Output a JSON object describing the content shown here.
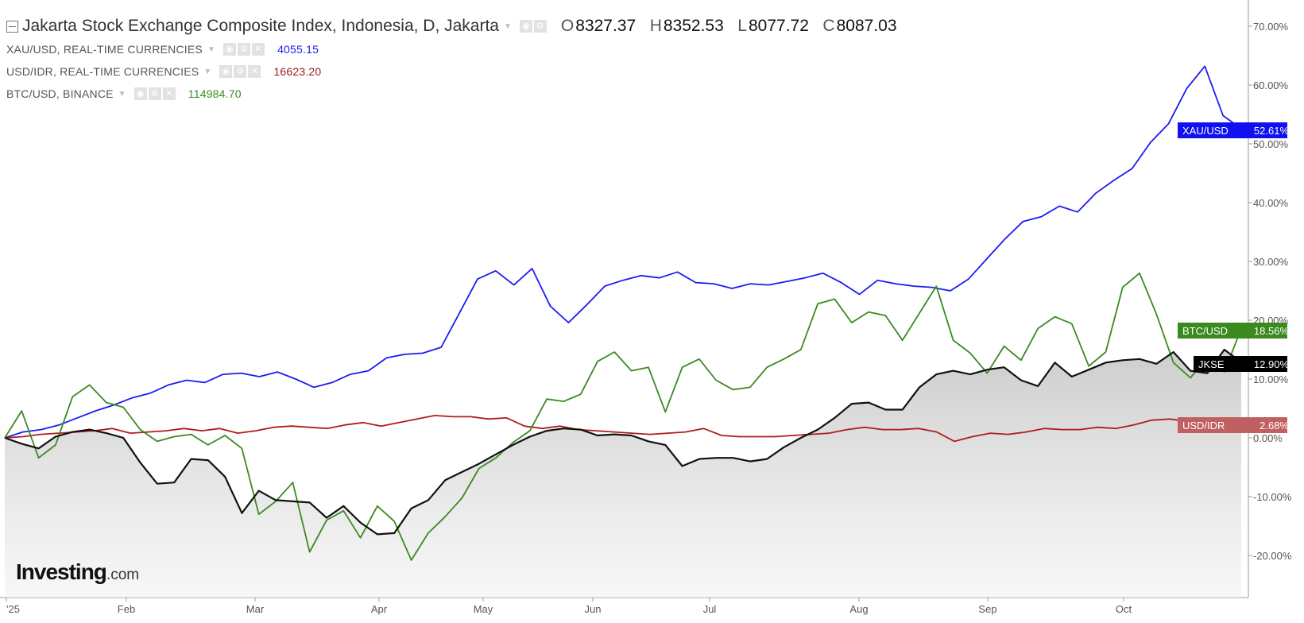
{
  "header": {
    "main_title": "Jakarta Stock Exchange Composite Index, Indonesia, D, Jakarta",
    "ohlc": {
      "o_label": "O",
      "o": "8327.37",
      "h_label": "H",
      "h": "8352.53",
      "l_label": "L",
      "l": "8077.72",
      "c_label": "C",
      "c": "8087.03"
    },
    "series_rows": [
      {
        "name": "XAU/USD, REAL-TIME CURRENCIES",
        "value": "4055.15"
      },
      {
        "name": "USD/IDR, REAL-TIME CURRENCIES",
        "value": "16623.20"
      },
      {
        "name": "BTC/USD, BINANCE",
        "value": "114984.70"
      }
    ]
  },
  "logo": {
    "main": "Investing",
    "suffix": ".com"
  },
  "icons": [
    "collapse-icon",
    "dropdown-caret-icon",
    "eye-icon",
    "settings-icon",
    "close-icon"
  ],
  "colors": {
    "xau": "#1c1cf0",
    "idr": "#b01c1c",
    "btc": "#3a8a20",
    "jkse": "#111111"
  },
  "chart_data": {
    "type": "line",
    "x_labels": [
      "'25",
      "Feb",
      "Mar",
      "Apr",
      "May",
      "Jun",
      "Jul",
      "Aug",
      "Sep",
      "Oct"
    ],
    "y_ticks": [
      "70.00%",
      "60.00%",
      "50.00%",
      "40.00%",
      "30.00%",
      "20.00%",
      "10.00%",
      "0.00%",
      "-10.00%",
      "-20.00%"
    ],
    "ylim": [
      -25,
      73
    ],
    "grid": false,
    "series": [
      {
        "name": "XAU/USD",
        "label": "XAU/USD",
        "last": "52.61%",
        "color": "#1c1cf0",
        "values": [
          0.0,
          1.0,
          1.4,
          2.2,
          3.4,
          4.6,
          5.6,
          6.8,
          7.6,
          9.0,
          9.8,
          9.4,
          10.8,
          11.0,
          10.4,
          11.2,
          10.0,
          8.6,
          9.4,
          10.8,
          11.4,
          13.6,
          14.2,
          14.4,
          15.4,
          21.2,
          27.0,
          28.4,
          26.0,
          28.8,
          22.4,
          19.6,
          22.6,
          25.8,
          26.8,
          27.6,
          27.2,
          28.2,
          26.4,
          26.2,
          25.4,
          26.2,
          26.0,
          26.6,
          27.2,
          28.0,
          26.4,
          24.4,
          26.8,
          26.2,
          25.8,
          25.6,
          25.0,
          27.0,
          30.4,
          33.8,
          36.8,
          37.6,
          39.4,
          38.4,
          41.6,
          43.8,
          45.8,
          50.2,
          53.4,
          59.4,
          63.2,
          54.8,
          52.6
        ]
      },
      {
        "name": "USD/IDR",
        "label": "USD/IDR",
        "last": "2.68%",
        "color": "#b01c1c",
        "values": [
          0.0,
          0.2,
          0.6,
          0.8,
          1.0,
          1.2,
          1.6,
          0.8,
          1.0,
          1.2,
          1.6,
          1.2,
          1.6,
          0.8,
          1.2,
          1.8,
          2.0,
          1.8,
          1.6,
          2.2,
          2.6,
          2.0,
          2.6,
          3.2,
          3.8,
          3.6,
          3.6,
          3.2,
          3.4,
          2.0,
          1.6,
          2.0,
          1.4,
          1.2,
          1.0,
          0.8,
          0.6,
          0.8,
          1.0,
          1.6,
          0.4,
          0.2,
          0.2,
          0.2,
          0.4,
          0.6,
          0.8,
          1.4,
          1.8,
          1.4,
          1.4,
          1.6,
          1.0,
          -0.6,
          0.2,
          0.8,
          0.6,
          1.0,
          1.6,
          1.4,
          1.4,
          1.8,
          1.6,
          2.2,
          3.0,
          3.2,
          2.8,
          2.4,
          2.6,
          2.68
        ]
      },
      {
        "name": "BTC/USD",
        "label": "BTC/USD",
        "last": "18.56%",
        "color": "#3a8a20",
        "values": [
          0.0,
          4.6,
          -3.4,
          -1.2,
          7.0,
          9.0,
          6.0,
          5.2,
          1.4,
          -0.6,
          0.2,
          0.6,
          -1.2,
          0.4,
          -1.8,
          -13.0,
          -10.8,
          -7.6,
          -19.4,
          -14.0,
          -12.4,
          -17.0,
          -11.6,
          -14.2,
          -20.8,
          -16.2,
          -13.4,
          -10.2,
          -5.2,
          -3.4,
          -0.8,
          1.2,
          6.6,
          6.2,
          7.4,
          13.0,
          14.6,
          11.4,
          12.0,
          4.4,
          12.0,
          13.4,
          9.8,
          8.2,
          8.6,
          12.0,
          13.4,
          15.0,
          22.8,
          23.6,
          19.6,
          21.4,
          20.8,
          16.6,
          21.2,
          25.8,
          16.6,
          14.4,
          11.0,
          15.6,
          13.2,
          18.6,
          20.6,
          19.4,
          12.2,
          14.6,
          25.6,
          28.0,
          21.0,
          12.8,
          10.2,
          13.6,
          11.2,
          18.56
        ]
      },
      {
        "name": "JKSE",
        "label": "JKSE",
        "last": "12.90%",
        "color": "#111111",
        "values": [
          0.0,
          -1.0,
          -1.8,
          0.2,
          1.0,
          1.4,
          0.8,
          0.0,
          -4.2,
          -7.8,
          -7.6,
          -3.6,
          -3.8,
          -6.6,
          -12.8,
          -9.0,
          -10.6,
          -10.8,
          -11.0,
          -13.6,
          -11.6,
          -14.4,
          -16.4,
          -16.2,
          -12.0,
          -10.6,
          -7.2,
          -5.8,
          -4.4,
          -2.8,
          -1.2,
          0.2,
          1.2,
          1.6,
          1.4,
          0.4,
          0.6,
          0.4,
          -0.6,
          -1.2,
          -4.8,
          -3.6,
          -3.4,
          -3.4,
          -4.0,
          -3.6,
          -1.6,
          0.0,
          1.4,
          3.4,
          5.8,
          6.0,
          4.8,
          4.8,
          8.6,
          10.8,
          11.4,
          10.8,
          11.6,
          12.0,
          9.8,
          8.8,
          12.8,
          10.4,
          11.6,
          12.8,
          13.2,
          13.4,
          12.6,
          14.6,
          11.4,
          11.0,
          15.0,
          12.9
        ]
      }
    ]
  }
}
